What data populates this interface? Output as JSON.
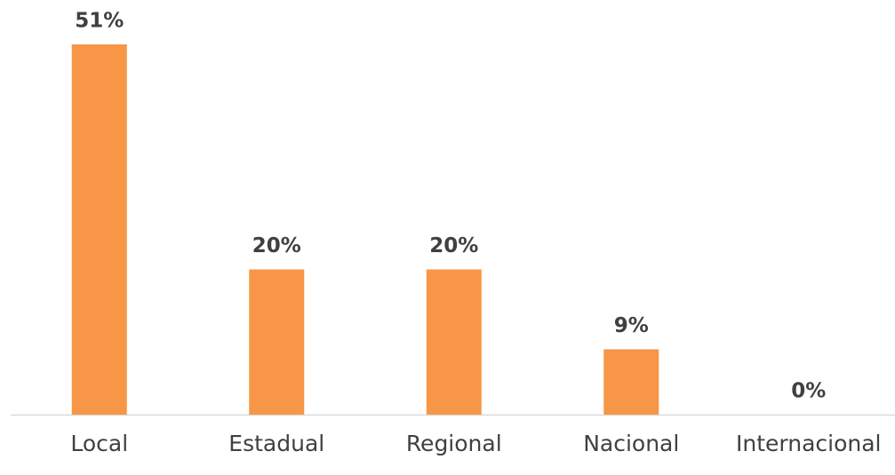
{
  "chart_data": {
    "type": "bar",
    "categories": [
      "Local",
      "Estadual",
      "Regional",
      "Nacional",
      "Internacional"
    ],
    "values": [
      51,
      20,
      20,
      9,
      0
    ],
    "value_labels": [
      "51%",
      "20%",
      "20%",
      "9%",
      "0%"
    ],
    "color": "#f79646"
  }
}
